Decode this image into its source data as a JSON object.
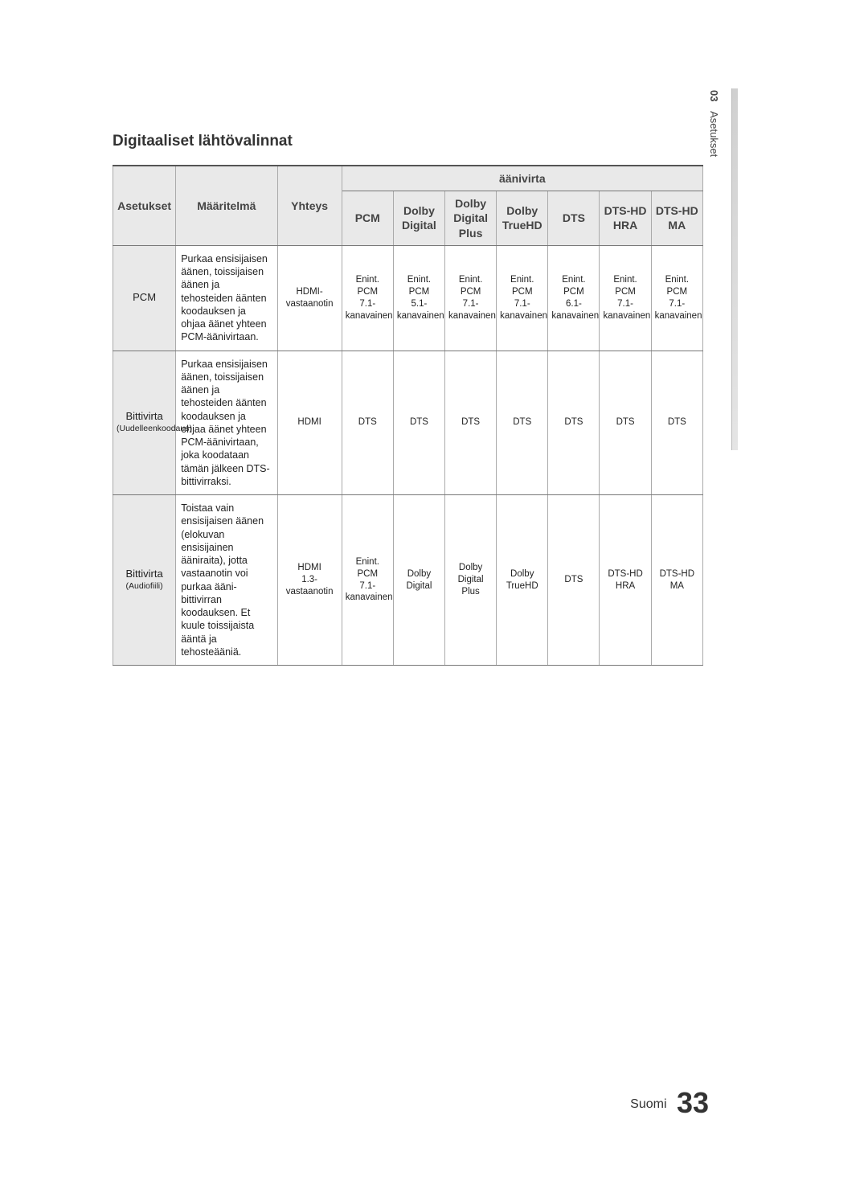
{
  "section_title": "Digitaaliset lähtövalinnat",
  "side_tab": {
    "num": "03",
    "label": "Asetukset"
  },
  "footer": {
    "lang": "Suomi",
    "page": "33"
  },
  "table": {
    "header": {
      "col_settings": "Asetukset",
      "col_definition": "Määritelmä",
      "col_connection": "Yhteys",
      "group_audio": "äänivirta",
      "audio_cols": [
        "PCM",
        "Dolby\nDigital",
        "Dolby\nDigital\nPlus",
        "Dolby\nTrueHD",
        "DTS",
        "DTS-HD\nHRA",
        "DTS-HD\nMA"
      ]
    },
    "rows": [
      {
        "label_main": "PCM",
        "label_sub": "",
        "definition": "Purkaa ensisijaisen äänen, toissijaisen äänen ja tehosteiden äänten koodauksen ja ohjaa äänet yhteen PCM-äänivirtaan.",
        "connection": "HDMI-\nvastaanotin",
        "cells": [
          "Enint. PCM\n7.1-kanavainen",
          "Enint. PCM\n5.1-kanavainen",
          "Enint. PCM\n7.1-kanavainen",
          "Enint. PCM\n7.1-kanavainen",
          "Enint. PCM\n6.1-kanavainen",
          "Enint. PCM\n7.1-kanavainen",
          "Enint. PCM\n7.1-kanavainen"
        ]
      },
      {
        "label_main": "Bittivirta",
        "label_sub": "(Uudelleenkoodaus)",
        "definition": "Purkaa ensisijaisen äänen, toissijaisen äänen ja tehosteiden äänten koodauksen ja ohjaa äänet yhteen PCM-äänivirtaan, joka koodataan tämän jälkeen DTS-bittivirraksi.",
        "connection": "HDMI",
        "cells": [
          "DTS",
          "DTS",
          "DTS",
          "DTS",
          "DTS",
          "DTS",
          "DTS"
        ]
      },
      {
        "label_main": "Bittivirta",
        "label_sub": "(Audiofiili)",
        "definition": "Toistaa vain ensisijaisen äänen (elokuvan ensisijainen ääniraita), jotta vastaanotin voi purkaa ääni-bittivirran koodauksen. Et kuule toissijaista ääntä ja tehosteääniä.",
        "connection": "HDMI\n1.3-vastaanotin",
        "cells": [
          "Enint. PCM\n7.1-kanavainen",
          "Dolby\nDigital",
          "Dolby\nDigital Plus",
          "Dolby\nTrueHD",
          "DTS",
          "DTS-HD\nHRA",
          "DTS-HD\nMA"
        ]
      }
    ]
  },
  "style": {
    "header_bg": "#e9e9e9",
    "row_label_bg": "#e9e9e9",
    "border_color": "#777777",
    "page_bg": "#ffffff",
    "text_color": "#222222",
    "title_fontsize": 19,
    "header_fontsize": 14,
    "cell_fontsize": 12.5,
    "small_fontsize": 11.5
  }
}
